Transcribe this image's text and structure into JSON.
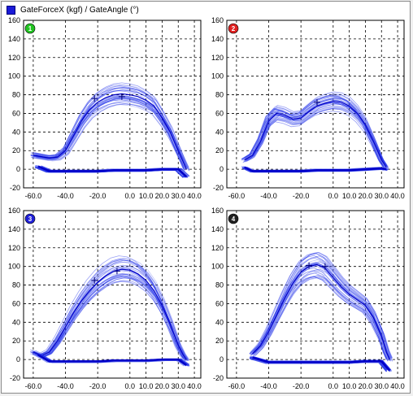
{
  "legend": {
    "label": "GateForceX (kgf) / GateAngle (°)"
  },
  "colors": {
    "trace": "#1f2fe8",
    "traceLight": "#7a86f2",
    "grid": "#000000"
  },
  "chart_data": [
    {
      "type": "line",
      "badge": "1",
      "badge_color": "#22c422",
      "xticks": [
        "-60.0",
        "-40.0",
        "-20.0",
        "0.0",
        "10.0",
        "20.0",
        "30.0",
        "40.0"
      ],
      "xtick_values": [
        -60,
        -40,
        -20,
        0,
        10,
        20,
        30,
        40
      ],
      "yticks": [
        "160",
        "140",
        "120",
        "100",
        "80",
        "60",
        "40",
        "20",
        "0",
        "-20"
      ],
      "xlim": [
        -66,
        44
      ],
      "ylim": [
        -20,
        160
      ],
      "grid": true,
      "series": [
        {
          "role": "loading",
          "x": [
            -60,
            -50,
            -45,
            -40,
            -35,
            -30,
            -25,
            -20,
            -15,
            -10,
            -5,
            0,
            5,
            10,
            15,
            20,
            25,
            30,
            33,
            35
          ],
          "y": [
            15,
            12,
            13,
            20,
            36,
            52,
            64,
            72,
            77,
            80,
            81,
            80,
            78,
            74,
            68,
            55,
            40,
            20,
            8,
            0
          ]
        },
        {
          "role": "return",
          "x": [
            35,
            30,
            20,
            10,
            0,
            -10,
            -20,
            -30,
            -40,
            -50,
            -57
          ],
          "y": [
            -8,
            0,
            0,
            -1,
            -1,
            -1,
            -2,
            -2,
            -2,
            -2,
            3
          ]
        }
      ],
      "markers": [
        {
          "x": -22,
          "y": 76
        },
        {
          "x": -5,
          "y": 78
        }
      ]
    },
    {
      "type": "line",
      "badge": "2",
      "badge_color": "#e02020",
      "xticks": [
        "-60.0",
        "-40.0",
        "-20.0",
        "0.0",
        "10.0",
        "20.0",
        "30.0",
        "40.0"
      ],
      "xtick_values": [
        -60,
        -40,
        -20,
        0,
        10,
        20,
        30,
        40
      ],
      "yticks": [
        "160",
        "140",
        "120",
        "100",
        "80",
        "60",
        "40",
        "20",
        "0",
        "-20"
      ],
      "xlim": [
        -66,
        44
      ],
      "ylim": [
        -20,
        160
      ],
      "grid": true,
      "series": [
        {
          "role": "loading",
          "x": [
            -55,
            -50,
            -45,
            -40,
            -35,
            -30,
            -25,
            -20,
            -15,
            -10,
            -5,
            0,
            5,
            10,
            15,
            20,
            25,
            30,
            33
          ],
          "y": [
            10,
            15,
            30,
            52,
            60,
            58,
            54,
            55,
            62,
            68,
            71,
            73,
            72,
            68,
            60,
            48,
            30,
            10,
            2
          ]
        },
        {
          "role": "return",
          "x": [
            33,
            30,
            20,
            10,
            0,
            -10,
            -20,
            -30,
            -40,
            -50,
            -55
          ],
          "y": [
            0,
            1,
            0,
            -1,
            -1,
            -1,
            -2,
            -2,
            -2,
            -2,
            2
          ]
        }
      ],
      "markers": [
        {
          "x": -10,
          "y": 72
        }
      ]
    },
    {
      "type": "line",
      "badge": "3",
      "badge_color": "#2020d8",
      "xticks": [
        "-60.0",
        "-40.0",
        "-20.0",
        "0.0",
        "10.0",
        "20.0",
        "30.0",
        "40.0"
      ],
      "xtick_values": [
        -60,
        -40,
        -20,
        0,
        10,
        20,
        30,
        40
      ],
      "yticks": [
        "160",
        "140",
        "120",
        "100",
        "80",
        "60",
        "40",
        "20",
        "0",
        "-20"
      ],
      "xlim": [
        -66,
        44
      ],
      "ylim": [
        -20,
        160
      ],
      "grid": true,
      "series": [
        {
          "role": "loading",
          "x": [
            -60,
            -55,
            -50,
            -45,
            -40,
            -35,
            -30,
            -25,
            -20,
            -15,
            -10,
            -5,
            0,
            5,
            10,
            15,
            20,
            25,
            30,
            33,
            35
          ],
          "y": [
            8,
            4,
            8,
            20,
            35,
            50,
            63,
            74,
            83,
            90,
            95,
            97,
            96,
            92,
            85,
            74,
            58,
            38,
            15,
            5,
            0
          ]
        },
        {
          "role": "return",
          "x": [
            35,
            30,
            20,
            10,
            0,
            -10,
            -20,
            -30,
            -40,
            -50,
            -57
          ],
          "y": [
            -6,
            0,
            0,
            -1,
            -1,
            -1,
            -2,
            -2,
            -2,
            -2,
            5
          ]
        }
      ],
      "markers": [
        {
          "x": -22,
          "y": 85
        },
        {
          "x": -8,
          "y": 95
        }
      ]
    },
    {
      "type": "line",
      "badge": "4",
      "badge_color": "#202020",
      "xticks": [
        "-60.0",
        "-40.0",
        "-20.0",
        "0.0",
        "10.0",
        "20.0",
        "30.0",
        "40.0"
      ],
      "xtick_values": [
        -60,
        -40,
        -20,
        0,
        10,
        20,
        30,
        40
      ],
      "yticks": [
        "160",
        "140",
        "120",
        "100",
        "80",
        "60",
        "40",
        "20",
        "0",
        "-20"
      ],
      "xlim": [
        -66,
        44
      ],
      "ylim": [
        -20,
        160
      ],
      "grid": true,
      "series": [
        {
          "role": "loading",
          "x": [
            -50,
            -45,
            -40,
            -35,
            -30,
            -25,
            -20,
            -15,
            -10,
            -5,
            0,
            5,
            10,
            15,
            20,
            25,
            30,
            33,
            35
          ],
          "y": [
            6,
            15,
            30,
            48,
            66,
            82,
            94,
            100,
            102,
            98,
            88,
            78,
            70,
            64,
            58,
            45,
            25,
            8,
            0
          ]
        },
        {
          "role": "return",
          "x": [
            35,
            30,
            20,
            10,
            0,
            -10,
            -20,
            -30,
            -40,
            -50
          ],
          "y": [
            -12,
            -2,
            -2,
            -3,
            -3,
            -3,
            -3,
            -3,
            -3,
            2
          ]
        }
      ],
      "markers": [
        {
          "x": -15,
          "y": 101
        },
        {
          "x": -5,
          "y": 100
        }
      ]
    }
  ]
}
